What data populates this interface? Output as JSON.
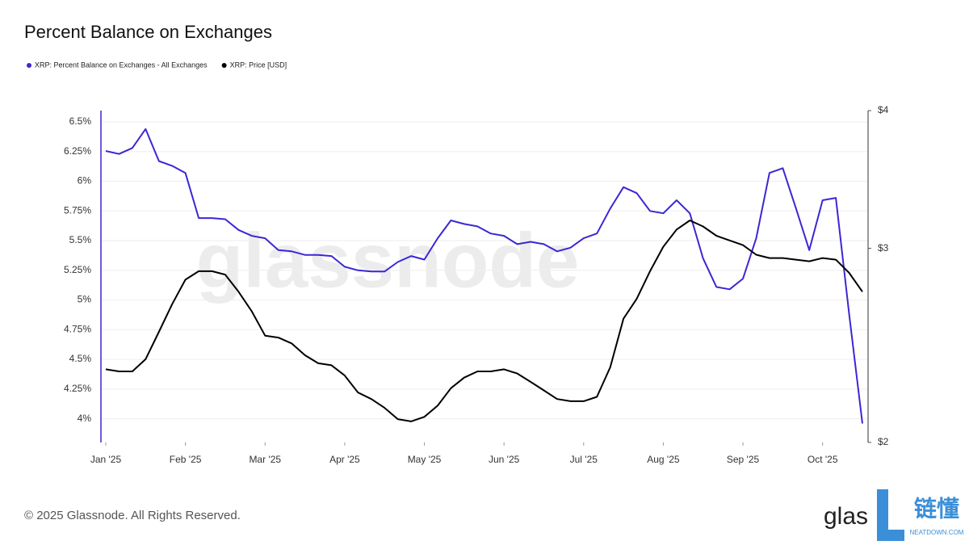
{
  "chart_data": {
    "type": "line",
    "title": "Percent Balance on Exchanges",
    "watermark": "glassnode",
    "footer": "© 2025 Glassnode. All Rights Reserved.",
    "logo": {
      "brand": "glas",
      "cn": "链懂",
      "site": "NEATDOWN.COM"
    },
    "categories": [
      "Jan '25",
      null,
      null,
      null,
      null,
      null,
      "Feb '25",
      null,
      null,
      null,
      null,
      null,
      "Mar '25",
      null,
      null,
      null,
      null,
      null,
      "Apr '25",
      null,
      null,
      null,
      null,
      null,
      "May '25",
      null,
      null,
      null,
      null,
      null,
      "Jun '25",
      null,
      null,
      null,
      null,
      null,
      "Jul '25",
      null,
      null,
      null,
      null,
      null,
      "Aug '25",
      null,
      null,
      null,
      null,
      null,
      "Sep '25",
      null,
      null,
      null,
      null,
      null,
      "Oct '25",
      null,
      null,
      null
    ],
    "series": [
      {
        "name": "XRP: Percent Balance on Exchanges - All Exchanges",
        "color": "#3b27d4",
        "axis": "y",
        "values": [
          6.255,
          6.23,
          6.28,
          6.44,
          6.17,
          6.13,
          6.07,
          5.69,
          5.69,
          5.68,
          5.59,
          5.54,
          5.52,
          5.42,
          5.41,
          5.38,
          5.38,
          5.37,
          5.28,
          5.25,
          5.24,
          5.24,
          5.32,
          5.37,
          5.34,
          5.52,
          5.67,
          5.64,
          5.62,
          5.56,
          5.54,
          5.47,
          5.49,
          5.47,
          5.41,
          5.44,
          5.52,
          5.56,
          5.77,
          5.95,
          5.9,
          5.75,
          5.73,
          5.84,
          5.73,
          5.35,
          5.11,
          5.09,
          5.18,
          5.52,
          6.07,
          6.11,
          5.77,
          5.42,
          5.84,
          5.86,
          4.88,
          3.96
        ]
      },
      {
        "name": "XRP: Price [USD]",
        "color": "#000000",
        "axis": "y2",
        "values": [
          2.33,
          2.32,
          2.32,
          2.38,
          2.52,
          2.67,
          2.81,
          2.86,
          2.86,
          2.84,
          2.74,
          2.63,
          2.5,
          2.49,
          2.46,
          2.4,
          2.36,
          2.35,
          2.3,
          2.22,
          2.19,
          2.15,
          2.1,
          2.09,
          2.11,
          2.16,
          2.24,
          2.29,
          2.32,
          2.32,
          2.33,
          2.31,
          2.27,
          2.23,
          2.19,
          2.18,
          2.18,
          2.2,
          2.34,
          2.59,
          2.7,
          2.86,
          3.01,
          3.12,
          3.18,
          3.14,
          3.08,
          3.05,
          3.02,
          2.96,
          2.94,
          2.94,
          2.93,
          2.92,
          2.94,
          2.93,
          2.85,
          2.74
        ]
      }
    ],
    "ylim": [
      3.8,
      6.595
    ],
    "yticks": [
      {
        "value": 4,
        "label": "4%"
      },
      {
        "value": 4.25,
        "label": "4.25%"
      },
      {
        "value": 4.5,
        "label": "4.5%"
      },
      {
        "value": 4.75,
        "label": "4.75%"
      },
      {
        "value": 5,
        "label": "5%"
      },
      {
        "value": 5.25,
        "label": "5.25%"
      },
      {
        "value": 5.5,
        "label": "5.5%"
      },
      {
        "value": 5.75,
        "label": "5.75%"
      },
      {
        "value": 6,
        "label": "6%"
      },
      {
        "value": 6.25,
        "label": "6.25%"
      },
      {
        "value": 6.5,
        "label": "6.5%"
      }
    ],
    "y2lim": [
      2,
      4
    ],
    "y2ticks": [
      {
        "value": 2,
        "label": "$2"
      },
      {
        "value": 3,
        "label": "$3"
      },
      {
        "value": 4,
        "label": "$4"
      }
    ],
    "y2log": true,
    "grid": true,
    "legend": "top-left"
  }
}
